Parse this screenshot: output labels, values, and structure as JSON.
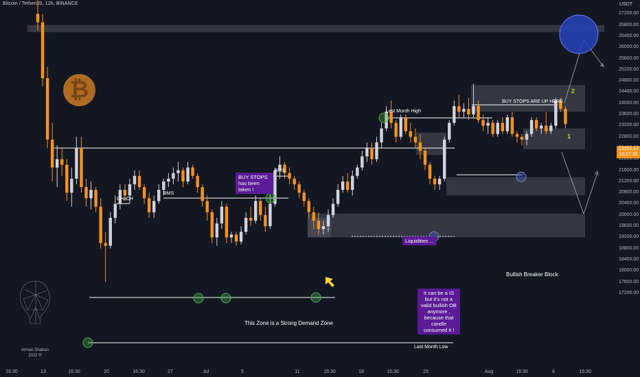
{
  "header": {
    "title": "Bitcoin / TetherUS, 12h, BINANCE",
    "currency": "USDT",
    "last_price": "23263.34",
    "countdown": "10:27:30"
  },
  "chart_data": {
    "type": "candlestick",
    "symbol": "Bitcoin / TetherUS",
    "interval": "12h",
    "exchange": "BINANCE",
    "y_axis": {
      "range": [
        17000,
        27600
      ],
      "ticks": [
        "27200.00",
        "26800.00",
        "26400.00",
        "26000.00",
        "25600.00",
        "25200.00",
        "24800.00",
        "24400.00",
        "24000.00",
        "23600.00",
        "23200.00",
        "22800.00",
        "22400.00",
        "22000.00",
        "21600.00",
        "21200.00",
        "20800.00",
        "20400.00",
        "20000.00",
        "19600.00",
        "19200.00",
        "18800.00",
        "18400.00",
        "18000.00",
        "17600.00",
        "17200.00"
      ]
    },
    "x_axis": {
      "ticks": [
        "16:30",
        "13",
        "16:30",
        "20",
        "16:30",
        "27",
        "Jul",
        "5",
        "11",
        "16:30",
        "18",
        "16:30",
        "25",
        "Aug",
        "16:30",
        "8",
        "16:30"
      ]
    },
    "candles": [
      {
        "o": 27200,
        "h": 27800,
        "l": 26600,
        "c": 26900
      },
      {
        "o": 26900,
        "h": 27200,
        "l": 24600,
        "c": 24900
      },
      {
        "o": 24900,
        "h": 25300,
        "l": 22400,
        "c": 22700
      },
      {
        "o": 22700,
        "h": 23300,
        "l": 21200,
        "c": 21700
      },
      {
        "o": 21700,
        "h": 22500,
        "l": 21000,
        "c": 22000
      },
      {
        "o": 22000,
        "h": 22400,
        "l": 21400,
        "c": 21800
      },
      {
        "o": 21800,
        "h": 22000,
        "l": 20500,
        "c": 20800
      },
      {
        "o": 20800,
        "h": 21700,
        "l": 20300,
        "c": 21300
      },
      {
        "o": 21300,
        "h": 22800,
        "l": 21100,
        "c": 22400
      },
      {
        "o": 22400,
        "h": 22800,
        "l": 20800,
        "c": 21000
      },
      {
        "o": 21000,
        "h": 21300,
        "l": 20300,
        "c": 20600
      },
      {
        "o": 20600,
        "h": 21200,
        "l": 20200,
        "c": 20900
      },
      {
        "o": 20900,
        "h": 21000,
        "l": 20100,
        "c": 20300
      },
      {
        "o": 20300,
        "h": 20600,
        "l": 18800,
        "c": 19000
      },
      {
        "o": 19000,
        "h": 19400,
        "l": 17600,
        "c": 18900
      },
      {
        "o": 18900,
        "h": 20100,
        "l": 18800,
        "c": 19900
      },
      {
        "o": 19900,
        "h": 20700,
        "l": 19700,
        "c": 20400
      },
      {
        "o": 20400,
        "h": 21100,
        "l": 20200,
        "c": 20900
      },
      {
        "o": 20900,
        "h": 21100,
        "l": 20500,
        "c": 20700
      },
      {
        "o": 20700,
        "h": 21300,
        "l": 20400,
        "c": 21100
      },
      {
        "o": 21100,
        "h": 21600,
        "l": 20900,
        "c": 21400
      },
      {
        "o": 21400,
        "h": 21600,
        "l": 20900,
        "c": 21000
      },
      {
        "o": 21000,
        "h": 21100,
        "l": 20400,
        "c": 20600
      },
      {
        "o": 20600,
        "h": 20800,
        "l": 19900,
        "c": 20100
      },
      {
        "o": 20100,
        "h": 20700,
        "l": 19900,
        "c": 20500
      },
      {
        "o": 20500,
        "h": 21100,
        "l": 20400,
        "c": 20900
      },
      {
        "o": 20900,
        "h": 21300,
        "l": 20700,
        "c": 21200
      },
      {
        "o": 21200,
        "h": 21500,
        "l": 21000,
        "c": 21300
      },
      {
        "o": 21300,
        "h": 21700,
        "l": 21100,
        "c": 21500
      },
      {
        "o": 21500,
        "h": 21900,
        "l": 21200,
        "c": 21600
      },
      {
        "o": 21600,
        "h": 21700,
        "l": 21000,
        "c": 21200
      },
      {
        "o": 21200,
        "h": 21900,
        "l": 21100,
        "c": 21700
      },
      {
        "o": 21700,
        "h": 21800,
        "l": 21300,
        "c": 21400
      },
      {
        "o": 21400,
        "h": 21500,
        "l": 20800,
        "c": 21000
      },
      {
        "o": 21000,
        "h": 21100,
        "l": 20300,
        "c": 20500
      },
      {
        "o": 20500,
        "h": 20700,
        "l": 19800,
        "c": 20100
      },
      {
        "o": 20100,
        "h": 20200,
        "l": 19000,
        "c": 19200
      },
      {
        "o": 19200,
        "h": 19900,
        "l": 18900,
        "c": 19700
      },
      {
        "o": 19700,
        "h": 20500,
        "l": 19500,
        "c": 20300
      },
      {
        "o": 20300,
        "h": 20400,
        "l": 19000,
        "c": 19200
      },
      {
        "o": 19200,
        "h": 19400,
        "l": 19000,
        "c": 19300
      },
      {
        "o": 19300,
        "h": 19400,
        "l": 18900,
        "c": 19050
      },
      {
        "o": 19050,
        "h": 19600,
        "l": 18950,
        "c": 19400
      },
      {
        "o": 19400,
        "h": 20100,
        "l": 19300,
        "c": 19900
      },
      {
        "o": 19900,
        "h": 20300,
        "l": 19600,
        "c": 19800
      },
      {
        "o": 19800,
        "h": 20700,
        "l": 19700,
        "c": 20500
      },
      {
        "o": 20500,
        "h": 20600,
        "l": 19800,
        "c": 20000
      },
      {
        "o": 20000,
        "h": 20300,
        "l": 19400,
        "c": 19600
      },
      {
        "o": 19600,
        "h": 20800,
        "l": 19500,
        "c": 20400
      },
      {
        "o": 20400,
        "h": 21700,
        "l": 20300,
        "c": 21600
      },
      {
        "o": 21600,
        "h": 22100,
        "l": 21300,
        "c": 21800
      },
      {
        "o": 21800,
        "h": 21900,
        "l": 21300,
        "c": 21500
      },
      {
        "o": 21500,
        "h": 21700,
        "l": 21100,
        "c": 21300
      },
      {
        "o": 21300,
        "h": 21400,
        "l": 20900,
        "c": 21100
      },
      {
        "o": 21100,
        "h": 21200,
        "l": 20600,
        "c": 20800
      },
      {
        "o": 20800,
        "h": 20900,
        "l": 20300,
        "c": 20500
      },
      {
        "o": 20500,
        "h": 20600,
        "l": 19900,
        "c": 20100
      },
      {
        "o": 20100,
        "h": 20300,
        "l": 19500,
        "c": 19800
      },
      {
        "o": 19800,
        "h": 20100,
        "l": 19300,
        "c": 19500
      },
      {
        "o": 19500,
        "h": 19800,
        "l": 19300,
        "c": 19600
      },
      {
        "o": 19600,
        "h": 20200,
        "l": 19400,
        "c": 20000
      },
      {
        "o": 20000,
        "h": 20600,
        "l": 19900,
        "c": 20400
      },
      {
        "o": 20400,
        "h": 21100,
        "l": 20300,
        "c": 20900
      },
      {
        "o": 20900,
        "h": 21400,
        "l": 20800,
        "c": 21200
      },
      {
        "o": 21200,
        "h": 21500,
        "l": 20800,
        "c": 20900
      },
      {
        "o": 20900,
        "h": 21600,
        "l": 20700,
        "c": 21400
      },
      {
        "o": 21400,
        "h": 21800,
        "l": 21300,
        "c": 21700
      },
      {
        "o": 21700,
        "h": 22300,
        "l": 21600,
        "c": 22100
      },
      {
        "o": 22100,
        "h": 22600,
        "l": 21900,
        "c": 22400
      },
      {
        "o": 22400,
        "h": 22600,
        "l": 21800,
        "c": 22000
      },
      {
        "o": 22000,
        "h": 22800,
        "l": 21900,
        "c": 22600
      },
      {
        "o": 22600,
        "h": 23300,
        "l": 22400,
        "c": 23100
      },
      {
        "o": 23100,
        "h": 23900,
        "l": 23000,
        "c": 23700
      },
      {
        "o": 23700,
        "h": 24100,
        "l": 23100,
        "c": 23300
      },
      {
        "o": 23300,
        "h": 23400,
        "l": 22600,
        "c": 22800
      },
      {
        "o": 22800,
        "h": 23600,
        "l": 22700,
        "c": 23500
      },
      {
        "o": 23500,
        "h": 23600,
        "l": 22900,
        "c": 23000
      },
      {
        "o": 23000,
        "h": 23300,
        "l": 22600,
        "c": 22800
      },
      {
        "o": 22800,
        "h": 23100,
        "l": 22400,
        "c": 22600
      },
      {
        "o": 22600,
        "h": 22900,
        "l": 22000,
        "c": 22300
      },
      {
        "o": 22300,
        "h": 22400,
        "l": 21600,
        "c": 21800
      },
      {
        "o": 21800,
        "h": 21900,
        "l": 21100,
        "c": 21300
      },
      {
        "o": 21300,
        "h": 21400,
        "l": 20900,
        "c": 21100
      },
      {
        "o": 21100,
        "h": 21400,
        "l": 20900,
        "c": 21300
      },
      {
        "o": 21300,
        "h": 22800,
        "l": 21200,
        "c": 22700
      },
      {
        "o": 22700,
        "h": 23400,
        "l": 22600,
        "c": 23300
      },
      {
        "o": 23300,
        "h": 24100,
        "l": 23200,
        "c": 23900
      },
      {
        "o": 23900,
        "h": 24300,
        "l": 23500,
        "c": 23700
      },
      {
        "o": 23700,
        "h": 24000,
        "l": 23500,
        "c": 23800
      },
      {
        "o": 23800,
        "h": 24200,
        "l": 23400,
        "c": 23600
      },
      {
        "o": 23600,
        "h": 24700,
        "l": 23500,
        "c": 23900
      },
      {
        "o": 23900,
        "h": 24100,
        "l": 23300,
        "c": 23400
      },
      {
        "o": 23400,
        "h": 23600,
        "l": 23000,
        "c": 23200
      },
      {
        "o": 23200,
        "h": 23500,
        "l": 22900,
        "c": 23300
      },
      {
        "o": 23300,
        "h": 23400,
        "l": 22800,
        "c": 22900
      },
      {
        "o": 22900,
        "h": 23400,
        "l": 22800,
        "c": 23300
      },
      {
        "o": 23300,
        "h": 23500,
        "l": 22900,
        "c": 23000
      },
      {
        "o": 23000,
        "h": 23600,
        "l": 22900,
        "c": 23500
      },
      {
        "o": 23500,
        "h": 23700,
        "l": 22800,
        "c": 22900
      },
      {
        "o": 22900,
        "h": 23000,
        "l": 22600,
        "c": 22800
      },
      {
        "o": 22800,
        "h": 22900,
        "l": 22500,
        "c": 22700
      },
      {
        "o": 22700,
        "h": 23000,
        "l": 22500,
        "c": 22900
      },
      {
        "o": 22900,
        "h": 23500,
        "l": 22800,
        "c": 23400
      },
      {
        "o": 23400,
        "h": 23500,
        "l": 23000,
        "c": 23100
      },
      {
        "o": 23100,
        "h": 23300,
        "l": 22900,
        "c": 23200
      },
      {
        "o": 23200,
        "h": 23700,
        "l": 22900,
        "c": 23000
      },
      {
        "o": 23000,
        "h": 23300,
        "l": 22900,
        "c": 23200
      },
      {
        "o": 23200,
        "h": 24200,
        "l": 23100,
        "c": 24100
      },
      {
        "o": 24100,
        "h": 24200,
        "l": 23700,
        "c": 23800
      },
      {
        "o": 23800,
        "h": 23900,
        "l": 23100,
        "c": 23263
      }
    ],
    "colors": {
      "up": "#d1d4dc",
      "down": "#f7931a",
      "background": "#131722",
      "zone": "#5d606b",
      "line": "#ffffff"
    },
    "zones": [
      {
        "top": 26800,
        "bottom": 26550
      },
      {
        "top": 24650,
        "bottom": 23700
      },
      {
        "top": 23100,
        "bottom": 22350
      },
      {
        "top": 22950,
        "bottom": 22150
      },
      {
        "top": 21350,
        "bottom": 20700
      },
      {
        "top": 20050,
        "bottom": 19200
      },
      {
        "top": 19900,
        "bottom": 19200
      }
    ],
    "annotations": {
      "last_month_high": "Last Month High",
      "last_month_low": "Last Month Low",
      "buy_stops_up": "BUY STOPS ARE UP HERE",
      "buy_stops_taken": "BUY STOPS has been taken !",
      "bms_1": "BMS",
      "bms_2": "BMS",
      "choch": "CHoCH",
      "liquidities": "Liquidities ...",
      "breaker_block": "Bullish Breaker Block",
      "demand_zone": "This Zone is a Strong Demand Zone",
      "ob_note": "It can be a IS but it's not a valid bullish OB anymore , because that candle consumed it !",
      "marker_1": "1",
      "marker_2": "2"
    }
  },
  "watermark": {
    "name": "Arman Shaban",
    "year": "2022 ®"
  }
}
